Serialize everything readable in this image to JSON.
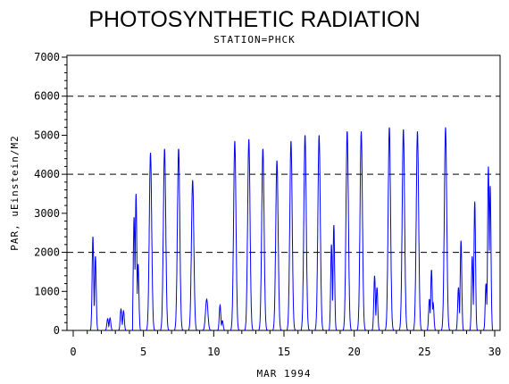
{
  "chart_data": {
    "type": "line",
    "title": "PHOTOSYNTHETIC RADIATION",
    "subtitle": "STATION=PHCK",
    "xlabel": "MAR 1994",
    "ylabel": "PAR, uEinstein/M2",
    "xlim": [
      0,
      30
    ],
    "ylim": [
      0,
      7000
    ],
    "x_ticks": [
      0,
      5,
      10,
      15,
      20,
      25,
      30
    ],
    "y_ticks": [
      0,
      1000,
      2000,
      3000,
      4000,
      5000,
      6000,
      7000
    ],
    "reference_lines": [
      2000,
      4000,
      6000
    ],
    "series_color": "#0000ff",
    "grid": false,
    "daily_peaks": [
      {
        "day": 1,
        "peaks": [
          [
            0.4,
            2400
          ],
          [
            0.58,
            1900
          ]
        ]
      },
      {
        "day": 2,
        "peaks": [
          [
            0.45,
            300
          ],
          [
            0.62,
            320
          ]
        ]
      },
      {
        "day": 3,
        "peaks": [
          [
            0.4,
            550
          ],
          [
            0.58,
            500
          ]
        ]
      },
      {
        "day": 4,
        "peaks": [
          [
            0.33,
            2900
          ],
          [
            0.47,
            3500
          ],
          [
            0.62,
            1700
          ]
        ]
      },
      {
        "day": 5,
        "peaks": [
          [
            0.5,
            4550
          ]
        ]
      },
      {
        "day": 6,
        "peaks": [
          [
            0.5,
            4650
          ]
        ]
      },
      {
        "day": 7,
        "peaks": [
          [
            0.5,
            4650
          ]
        ]
      },
      {
        "day": 8,
        "peaks": [
          [
            0.5,
            3850
          ]
        ]
      },
      {
        "day": 9,
        "peaks": [
          [
            0.5,
            800
          ]
        ]
      },
      {
        "day": 10,
        "peaks": [
          [
            0.45,
            650
          ],
          [
            0.62,
            250
          ]
        ]
      },
      {
        "day": 11,
        "peaks": [
          [
            0.5,
            4850
          ]
        ]
      },
      {
        "day": 12,
        "peaks": [
          [
            0.5,
            4900
          ]
        ]
      },
      {
        "day": 13,
        "peaks": [
          [
            0.5,
            4650
          ]
        ]
      },
      {
        "day": 14,
        "peaks": [
          [
            0.5,
            4350
          ]
        ]
      },
      {
        "day": 15,
        "peaks": [
          [
            0.5,
            4850
          ]
        ]
      },
      {
        "day": 16,
        "peaks": [
          [
            0.5,
            5000
          ]
        ]
      },
      {
        "day": 17,
        "peaks": [
          [
            0.5,
            5000
          ]
        ]
      },
      {
        "day": 18,
        "peaks": [
          [
            0.38,
            2200
          ],
          [
            0.55,
            2700
          ]
        ]
      },
      {
        "day": 19,
        "peaks": [
          [
            0.5,
            5100
          ]
        ]
      },
      {
        "day": 20,
        "peaks": [
          [
            0.5,
            5100
          ]
        ]
      },
      {
        "day": 21,
        "peaks": [
          [
            0.45,
            1400
          ],
          [
            0.62,
            1100
          ]
        ]
      },
      {
        "day": 22,
        "peaks": [
          [
            0.5,
            5200
          ]
        ]
      },
      {
        "day": 23,
        "peaks": [
          [
            0.5,
            5150
          ]
        ]
      },
      {
        "day": 24,
        "peaks": [
          [
            0.5,
            5100
          ]
        ]
      },
      {
        "day": 25,
        "peaks": [
          [
            0.35,
            800
          ],
          [
            0.5,
            1550
          ],
          [
            0.62,
            700
          ]
        ]
      },
      {
        "day": 26,
        "peaks": [
          [
            0.5,
            5200
          ]
        ]
      },
      {
        "day": 27,
        "peaks": [
          [
            0.42,
            1100
          ],
          [
            0.6,
            2300
          ]
        ]
      },
      {
        "day": 28,
        "peaks": [
          [
            0.4,
            1900
          ],
          [
            0.58,
            3300
          ]
        ]
      },
      {
        "day": 29,
        "peaks": [
          [
            0.38,
            1200
          ],
          [
            0.55,
            4200
          ],
          [
            0.68,
            3700
          ]
        ]
      }
    ]
  }
}
